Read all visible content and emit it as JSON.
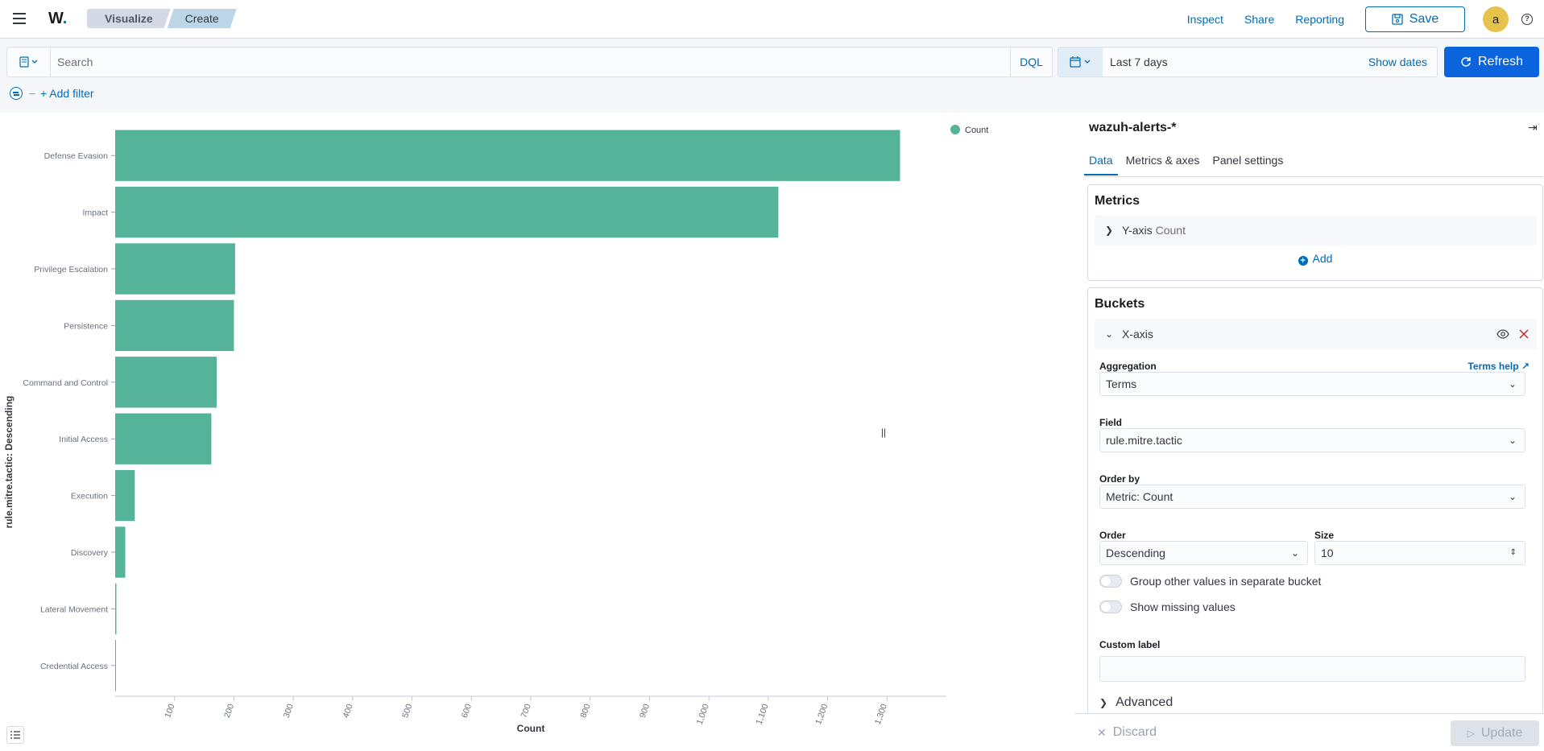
{
  "header": {
    "logo": "W",
    "logo_dot": ".",
    "breadcrumbs": [
      "Visualize",
      "Create"
    ],
    "links": [
      "Inspect",
      "Share",
      "Reporting"
    ],
    "save_label": "Save",
    "avatar_initial": "a",
    "help_glyph": "?"
  },
  "query": {
    "search_placeholder": "Search",
    "language": "DQL",
    "date_range": "Last 7 days",
    "show_dates": "Show dates",
    "refresh_label": "Refresh",
    "add_filter": "+ Add filter"
  },
  "chart_data": {
    "type": "bar",
    "orientation": "horizontal",
    "color": "#54b399",
    "categories": [
      "Defense Evasion",
      "Impact",
      "Privilege Escalation",
      "Persistence",
      "Command and Control",
      "Initial Access",
      "Execution",
      "Discovery",
      "Lateral Movement",
      "Credential Access"
    ],
    "series": [
      {
        "name": "Count",
        "values": [
          1322,
          1117,
          202,
          200,
          171,
          162,
          33,
          17,
          2,
          1
        ]
      }
    ],
    "xlabel": "Count",
    "ylabel": "rule.mitre.tactic: Descending",
    "xticks": [
      100,
      200,
      300,
      400,
      500,
      600,
      700,
      800,
      900,
      1000,
      1100,
      1200,
      1300
    ],
    "xtick_labels": [
      "100",
      "200",
      "300",
      "400",
      "500",
      "600",
      "700",
      "800",
      "900",
      "1,000",
      "1,100",
      "1,200",
      "1,300"
    ],
    "xlim": [
      0,
      1400
    ],
    "legend": {
      "label": "Count",
      "position": "top-right"
    }
  },
  "sidebar": {
    "index_pattern": "wazuh-alerts-*",
    "tabs": [
      "Data",
      "Metrics & axes",
      "Panel settings"
    ],
    "metrics": {
      "title": "Metrics",
      "agg_label": "Y-axis",
      "agg_sub": "Count",
      "add_label": "Add"
    },
    "buckets": {
      "title": "Buckets",
      "agg_label": "X-axis",
      "aggregation_label": "Aggregation",
      "terms_help": "Terms help",
      "aggregation_value": "Terms",
      "field_label": "Field",
      "field_value": "rule.mitre.tactic",
      "order_by_label": "Order by",
      "order_by_value": "Metric: Count",
      "order_label": "Order",
      "order_value": "Descending",
      "size_label": "Size",
      "size_value": "10",
      "group_other": "Group other values in separate bucket",
      "show_missing": "Show missing values",
      "custom_label": "Custom label",
      "advanced": "Advanced"
    },
    "discard_label": "Discard",
    "update_label": "Update"
  },
  "colors": {
    "accent": "#006bb8",
    "primary_button": "#0b64dd",
    "bar": "#54b399",
    "danger": "#bd271e"
  }
}
